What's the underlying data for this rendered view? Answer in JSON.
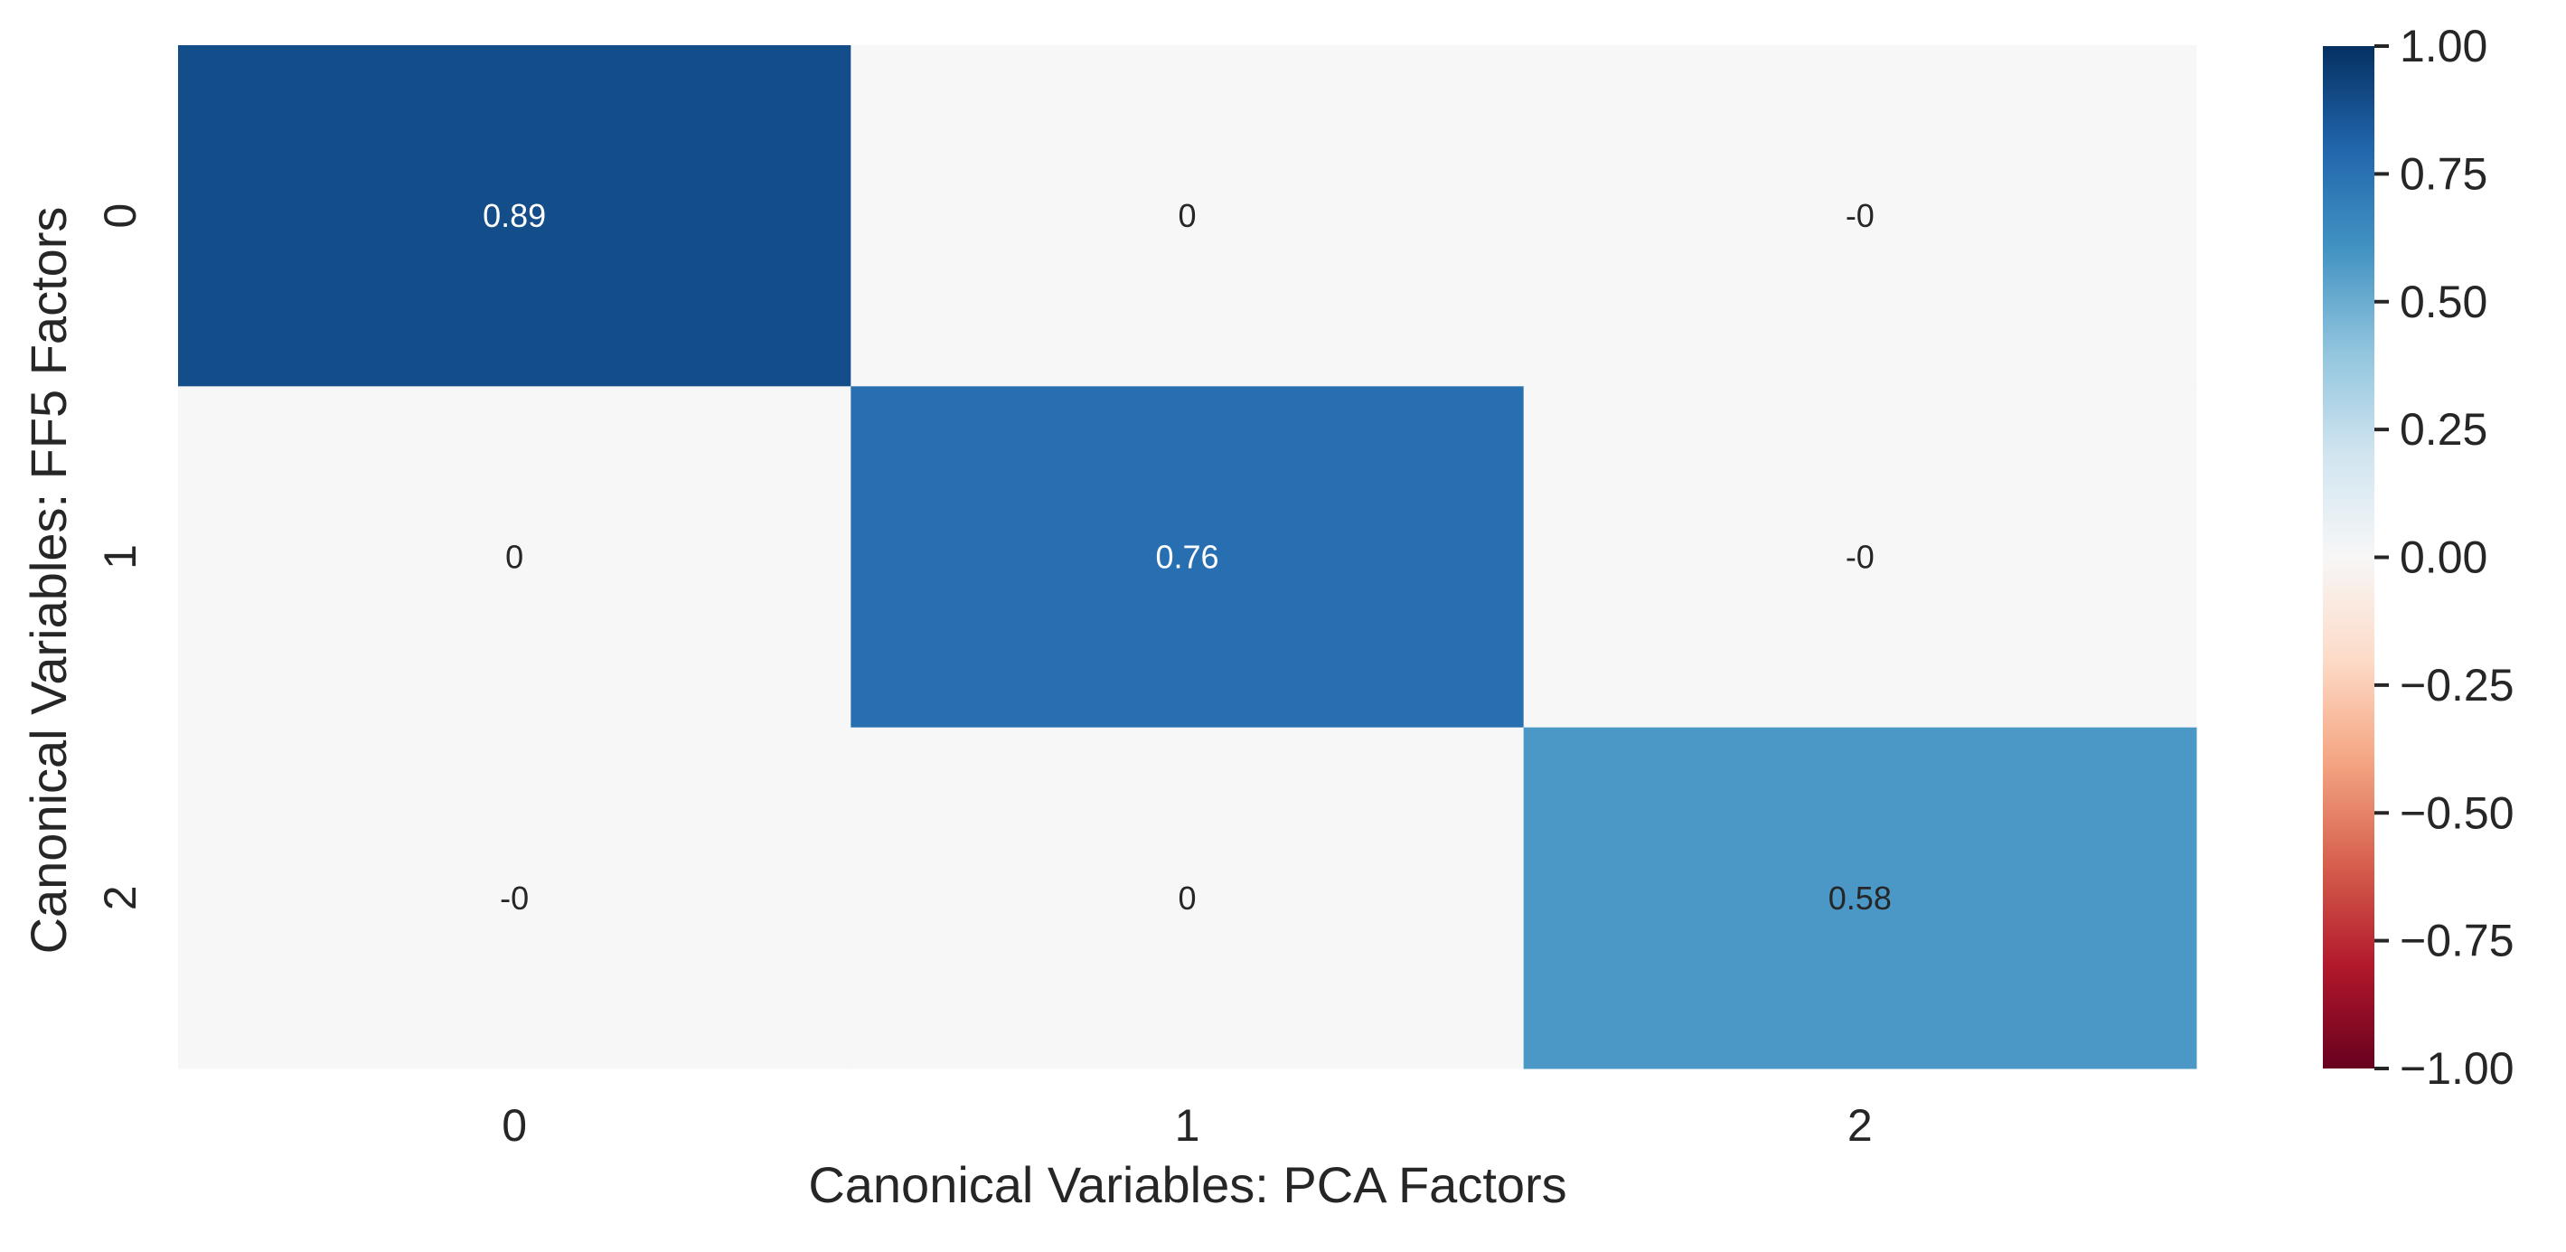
{
  "chart_data": {
    "type": "heatmap",
    "xlabel": "Canonical Variables: PCA Factors",
    "ylabel": "Canonical Variables: FF5 Factors",
    "x_categories": [
      "0",
      "1",
      "2"
    ],
    "y_categories": [
      "0",
      "1",
      "2"
    ],
    "values": [
      [
        0.89,
        0,
        0
      ],
      [
        0,
        0.76,
        0
      ],
      [
        0,
        0,
        0.58
      ]
    ],
    "annotations": [
      [
        "0.89",
        "0",
        "-0"
      ],
      [
        "0",
        "0.76",
        "-0"
      ],
      [
        "-0",
        "0",
        "0.58"
      ]
    ],
    "colormap": "RdBu",
    "vmin": -1.0,
    "vmax": 1.0,
    "colorbar": {
      "ticks": [
        1.0,
        0.75,
        0.5,
        0.25,
        0.0,
        -0.25,
        -0.5,
        -0.75,
        -1.0
      ],
      "tick_labels": [
        "1.00",
        "0.75",
        "0.50",
        "0.25",
        "0.00",
        "−0.25",
        "−0.50",
        "−0.75",
        "−1.00"
      ]
    },
    "legend_position": "right"
  }
}
